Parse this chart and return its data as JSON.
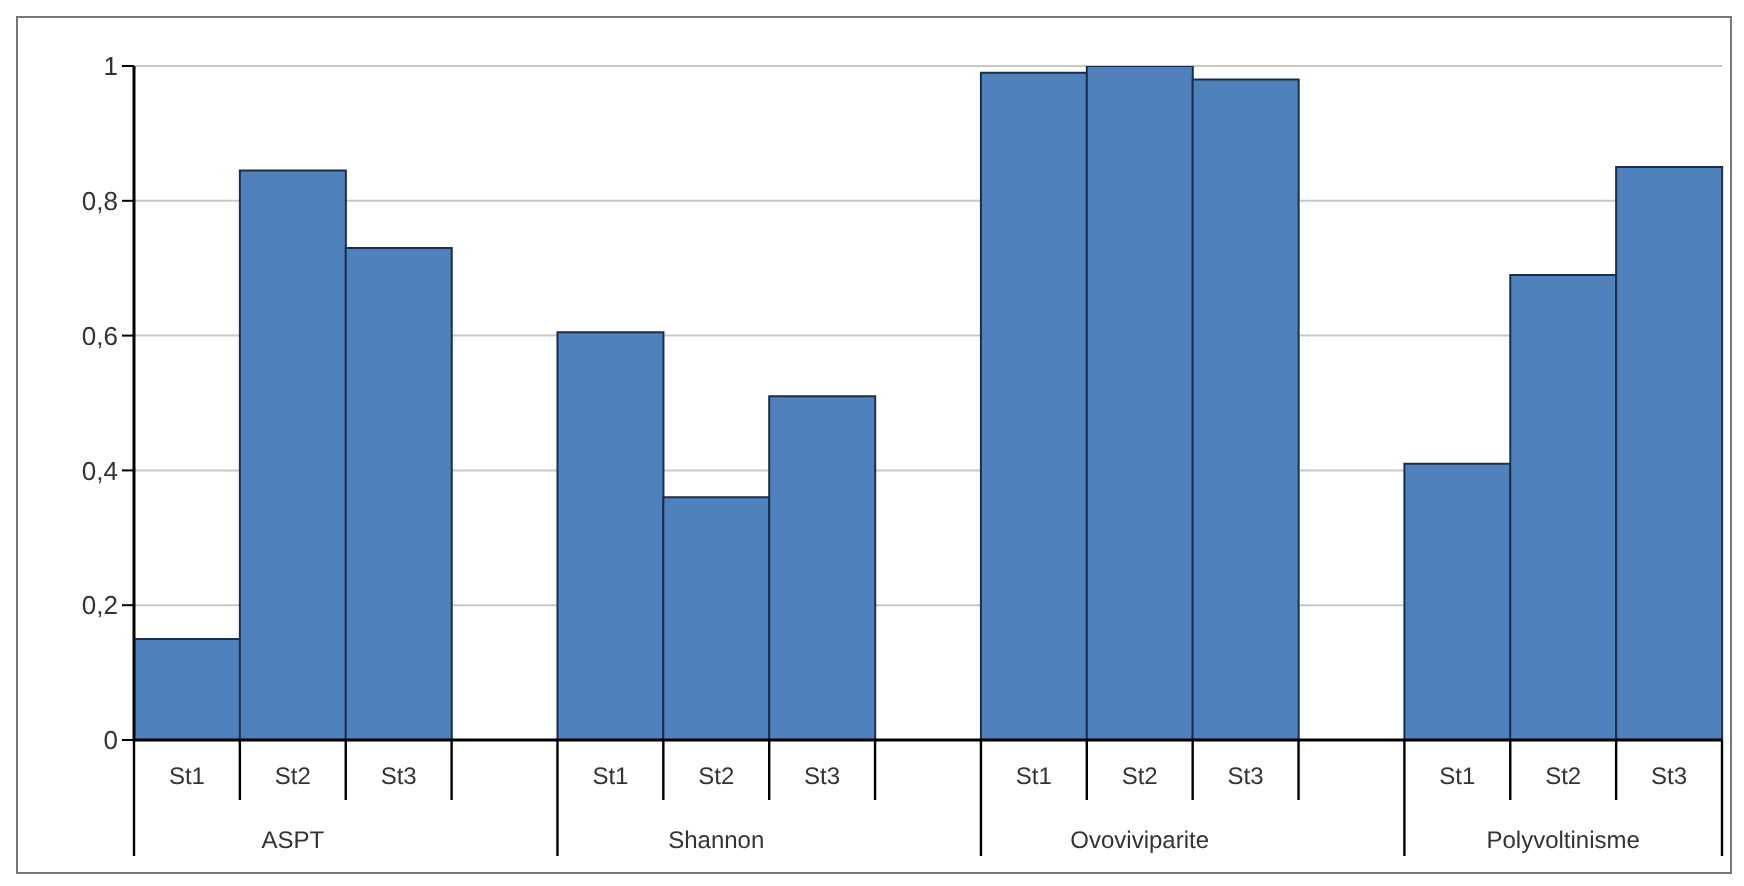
{
  "chart_data": {
    "type": "bar",
    "categories": [
      "St1",
      "St2",
      "St3",
      null,
      "St1",
      "St2",
      "St3",
      null,
      "St1",
      "St2",
      "St3",
      null,
      "St1",
      "St2",
      "St3"
    ],
    "values": [
      0.15,
      0.845,
      0.73,
      null,
      0.605,
      0.36,
      0.51,
      null,
      0.99,
      1.0,
      0.98,
      null,
      0.41,
      0.69,
      0.85
    ],
    "color": "#4f81bd",
    "annotations": [
      "ASPT",
      "Shannon",
      "Ovoviviparite",
      "Polyvoltinisme"
    ],
    "ylim": [
      0,
      1
    ],
    "yticks": [
      0,
      {
        "value": 0.2,
        "label": "0,2"
      },
      {
        "value": 0.4,
        "label": "0,4"
      },
      {
        "value": 0.6,
        "label": "0,6"
      },
      {
        "value": 0.8,
        "label": "0,8"
      },
      1
    ],
    "grid": "y",
    "legend": false
  }
}
